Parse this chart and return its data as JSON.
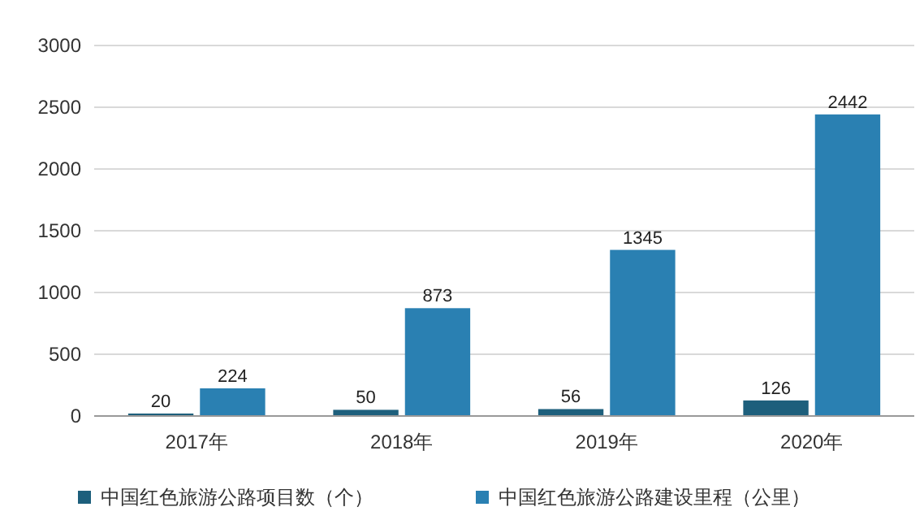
{
  "chart_data": {
    "type": "bar",
    "categories": [
      "2017年",
      "2018年",
      "2019年",
      "2020年"
    ],
    "series": [
      {
        "name": "中国红色旅游公路项目数（个）",
        "color": "#1d5f7c",
        "values": [
          20,
          50,
          56,
          126
        ]
      },
      {
        "name": "中国红色旅游公路建设里程（公里）",
        "color": "#2a80b2",
        "values": [
          224,
          873,
          1345,
          2442
        ]
      }
    ],
    "ylim": [
      0,
      3000
    ],
    "yticks": [
      0,
      500,
      1000,
      1500,
      2000,
      2500,
      3000
    ],
    "grid": "y",
    "legend": "bottom",
    "data_labels": true
  }
}
